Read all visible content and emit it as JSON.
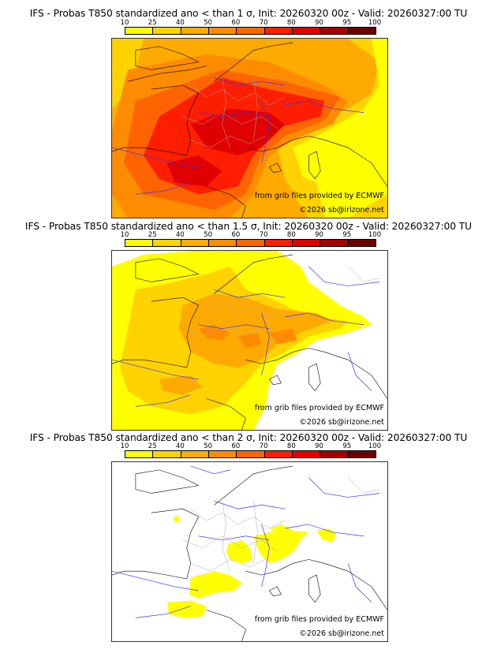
{
  "colorbar": {
    "ticks": [
      "10",
      "25",
      "40",
      "50",
      "60",
      "70",
      "80",
      "90",
      "95",
      "100"
    ],
    "colors": [
      "#ffff00",
      "#ffd200",
      "#ffaa00",
      "#ff8c00",
      "#ff6400",
      "#ff1e00",
      "#e10000",
      "#a50000",
      "#6e0000"
    ]
  },
  "panels": [
    {
      "title": "IFS - Probas T850  standardized ano < than 1 σ, Init: 20260320 00z - Valid: 20260327:00 TU",
      "threshold_sigma": "1",
      "credit_source": "from grib files provided by ECMWF",
      "credit_copyright": "©2026 sb@irizone.net"
    },
    {
      "title": "IFS - Probas T850  standardized ano < than 1.5 σ, Init: 20260320 00z - Valid: 20260327:00 TU",
      "threshold_sigma": "1.5",
      "credit_source": "from grib files provided by ECMWF",
      "credit_copyright": "©2026 sb@irizone.net"
    },
    {
      "title": "IFS - Probas T850  standardized ano < than 2 σ, Init: 20260320 00z - Valid: 20260327:00 TU",
      "threshold_sigma": "2",
      "credit_source": "from grib files provided by ECMWF",
      "credit_copyright": "©2026 sb@irizone.net"
    }
  ],
  "colors": {
    "coastline": "#000000",
    "rivers": "#3333ff",
    "borders": "#aaaaaa"
  }
}
